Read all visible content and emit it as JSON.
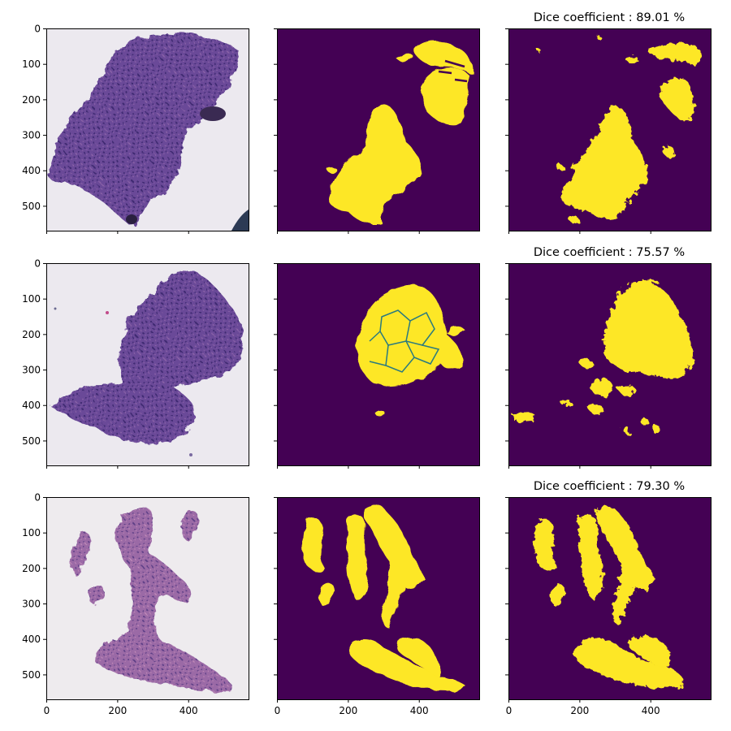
{
  "figure": {
    "rows": [
      {
        "dice_title": "Dice coefficient : 89.01 %"
      },
      {
        "dice_title": "Dice coefficient : 75.57 %"
      },
      {
        "dice_title": "Dice coefficient : 79.30 %"
      }
    ],
    "columns": [
      "H&E image",
      "ground truth mask",
      "predicted mask"
    ]
  },
  "chart_data": {
    "type": "heatmap",
    "layout": "3x3 image grid",
    "xlim": [
      0,
      570
    ],
    "ylim": [
      570,
      0
    ],
    "x_ticks": [
      0,
      200,
      400
    ],
    "y_ticks": [
      0,
      100,
      200,
      300,
      400,
      500
    ],
    "x_tick_labels": [
      "0",
      "200",
      "400"
    ],
    "y_tick_labels": [
      "0",
      "100",
      "200",
      "300",
      "400",
      "500"
    ],
    "colormap": "viridis",
    "mask_colors": {
      "background": "#440154",
      "foreground": "#fde725"
    },
    "dice_coefficients_percent": [
      89.01,
      75.57,
      79.3
    ],
    "grid": false
  }
}
